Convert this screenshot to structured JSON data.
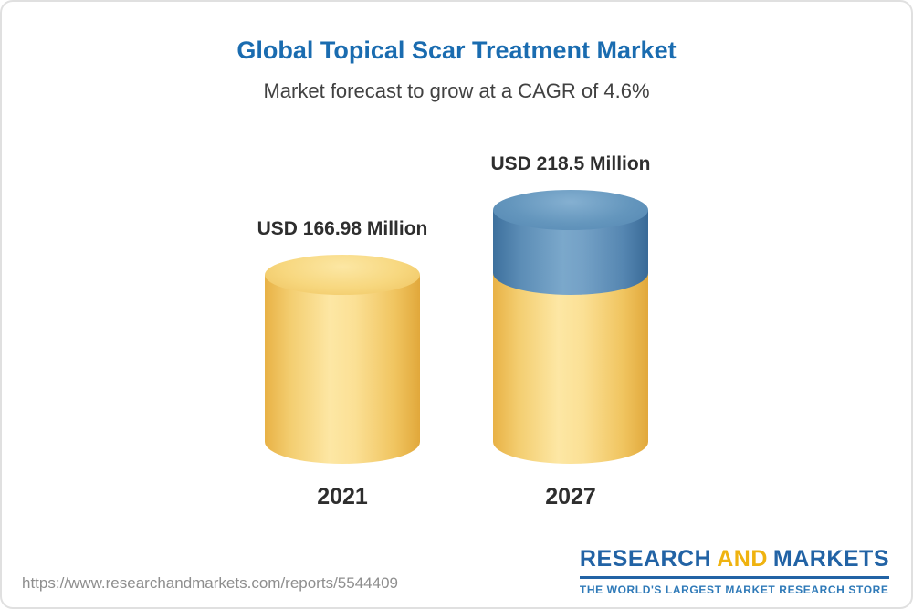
{
  "chart_data": {
    "type": "bar",
    "title": "Global Topical Scar Treatment Market",
    "subtitle": "Market forecast to grow at a CAGR of 4.6%",
    "categories": [
      "2021",
      "2027"
    ],
    "values": [
      166.98,
      218.5
    ],
    "value_labels": [
      "USD 166.98 Million",
      "USD 218.5 Million"
    ],
    "unit": "USD Million",
    "cagr": "4.6%",
    "grid": false,
    "legend_position": "none",
    "colors": {
      "base_segment": "#f7d77e",
      "growth_segment": "#5d8fb8",
      "title_text": "#1a6cb0",
      "label_text": "#2e2e2e"
    }
  },
  "footer": {
    "url": "https://www.researchandmarkets.com/reports/5544409",
    "logo": {
      "part1": "RESEARCH",
      "part2": "AND",
      "part3": "MARKETS",
      "tagline": "THE WORLD'S LARGEST MARKET RESEARCH STORE"
    }
  }
}
